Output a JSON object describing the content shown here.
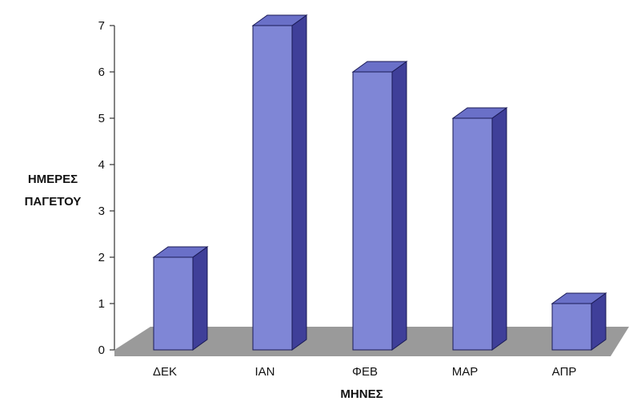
{
  "chart_data": {
    "type": "bar",
    "title": "",
    "categories": [
      "ΔΕΚ",
      "ΙΑΝ",
      "ΦΕΒ",
      "ΜΑΡ",
      "ΑΠΡ"
    ],
    "values": [
      2,
      7,
      6,
      5,
      1
    ],
    "ylabel_lines": [
      "ΗΜΕΡΕΣ",
      "ΠΑΓΕΤΟΥ"
    ],
    "xlabel": "ΜΗΝΕΣ",
    "ylim": [
      0,
      7
    ],
    "yticks": [
      "0",
      "1",
      "2",
      "3",
      "4",
      "5",
      "6",
      "7"
    ],
    "grid": false,
    "legend": "none",
    "style": "3d-column",
    "colors": {
      "bar_front": "#7f86d6",
      "bar_side": "#3f3f99",
      "bar_top": "#6a70c8",
      "floor": "#9a9a9a",
      "axis": "#333333"
    }
  }
}
